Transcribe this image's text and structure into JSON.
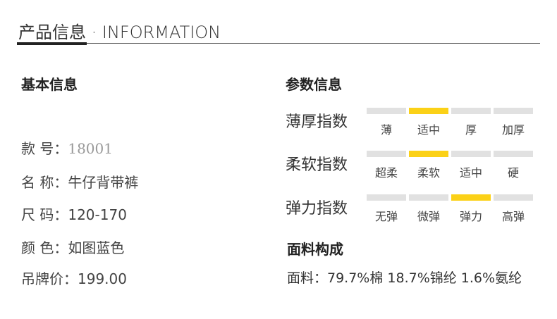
{
  "header": {
    "title": "产品信息 · INFORMATION"
  },
  "basic": {
    "heading": "基本信息",
    "rows": [
      {
        "label": "款 号：",
        "value": "18001"
      },
      {
        "label": "名 称：",
        "value": "牛仔背带裤"
      },
      {
        "label": "尺 码：",
        "value": "120-170"
      },
      {
        "label": "颜 色：",
        "value": "如图蓝色"
      },
      {
        "label": "吊牌价：",
        "value": "199.00"
      }
    ]
  },
  "params": {
    "heading": "参数信息",
    "indices": [
      {
        "label": "薄厚指数",
        "options": [
          "薄",
          "适中",
          "厚",
          "加厚"
        ],
        "selected": 1
      },
      {
        "label": "柔软指数",
        "options": [
          "超柔",
          "柔软",
          "适中",
          "硬"
        ],
        "selected": 1
      },
      {
        "label": "弹力指数",
        "options": [
          "无弹",
          "微弹",
          "弹力",
          "高弹"
        ],
        "selected": 2
      }
    ]
  },
  "fabric": {
    "heading": "面料构成",
    "text": "面料：79.7%棉 18.7%锦纶 1.6%氨纶"
  },
  "colors": {
    "accent": "#fbd117",
    "inactive": "#e1e1e1"
  }
}
